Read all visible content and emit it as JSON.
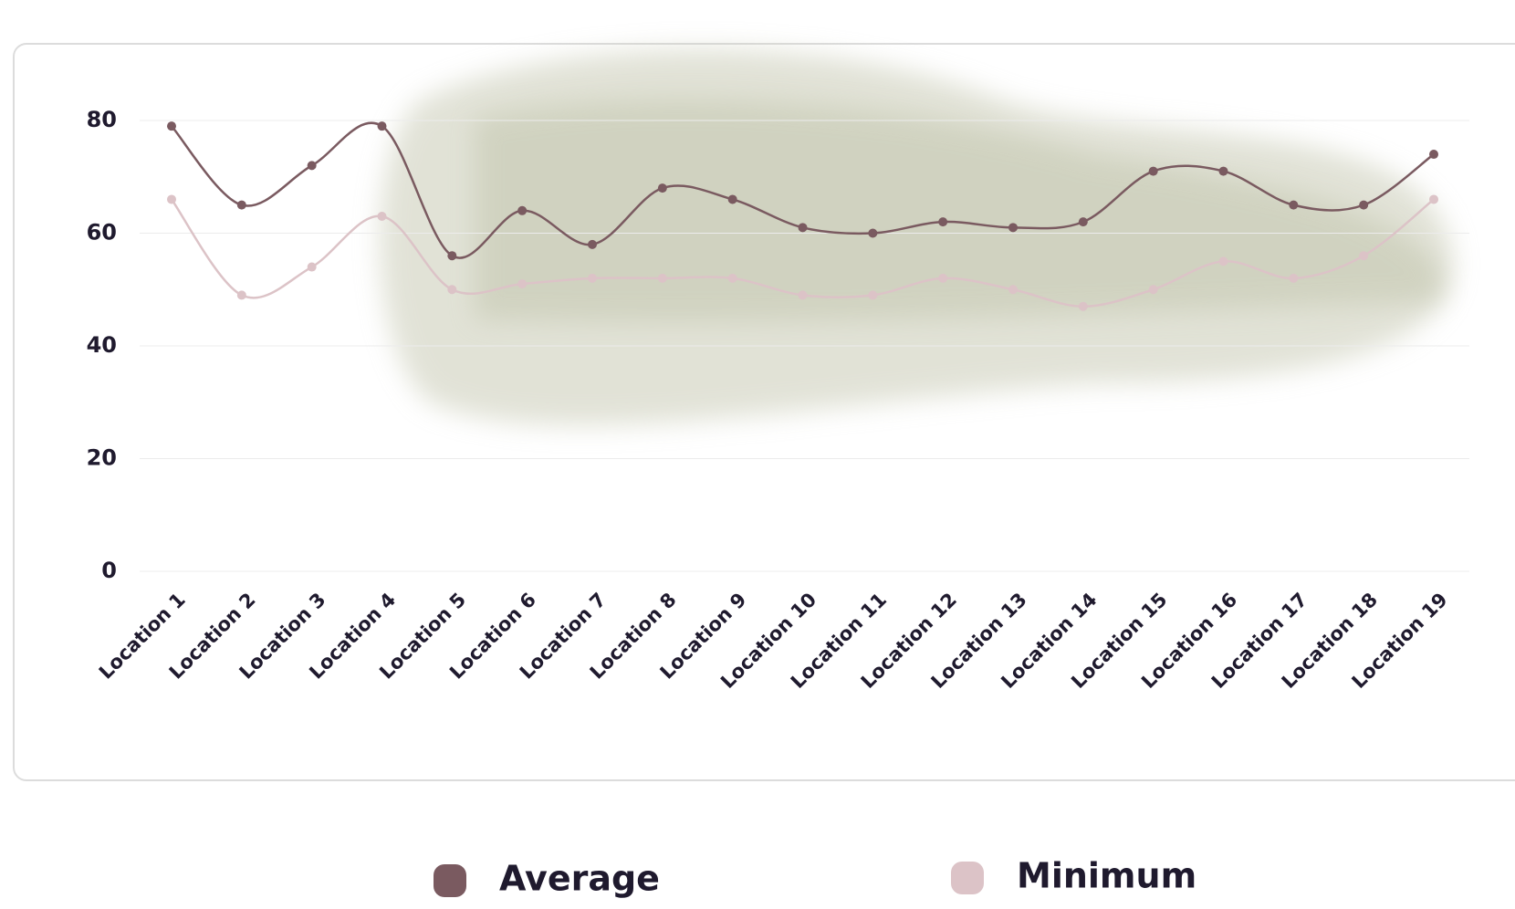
{
  "chart_data": {
    "type": "line",
    "categories": [
      "Location 1",
      "Location 2",
      "Location 3",
      "Location 4",
      "Location 5",
      "Location 6",
      "Location 7",
      "Location 8",
      "Location 9",
      "Location 10",
      "Location 11",
      "Location 12",
      "Location 13",
      "Location 14",
      "Location 15",
      "Location 16",
      "Location 17",
      "Location 18",
      "Location 19"
    ],
    "series": [
      {
        "name": "Average",
        "color": "#7a5a60",
        "values": [
          79,
          65,
          72,
          79,
          56,
          64,
          58,
          68,
          66,
          61,
          60,
          62,
          61,
          62,
          71,
          71,
          65,
          65,
          74
        ]
      },
      {
        "name": "Minimum",
        "color": "#dcc3c7",
        "values": [
          66,
          49,
          54,
          63,
          50,
          51,
          52,
          52,
          52,
          49,
          49,
          52,
          50,
          47,
          50,
          55,
          52,
          56,
          66
        ]
      }
    ],
    "ylim": [
      0,
      80
    ],
    "yticks": [
      0,
      20,
      40,
      60,
      80
    ],
    "grid": true,
    "legend": "bottom"
  }
}
